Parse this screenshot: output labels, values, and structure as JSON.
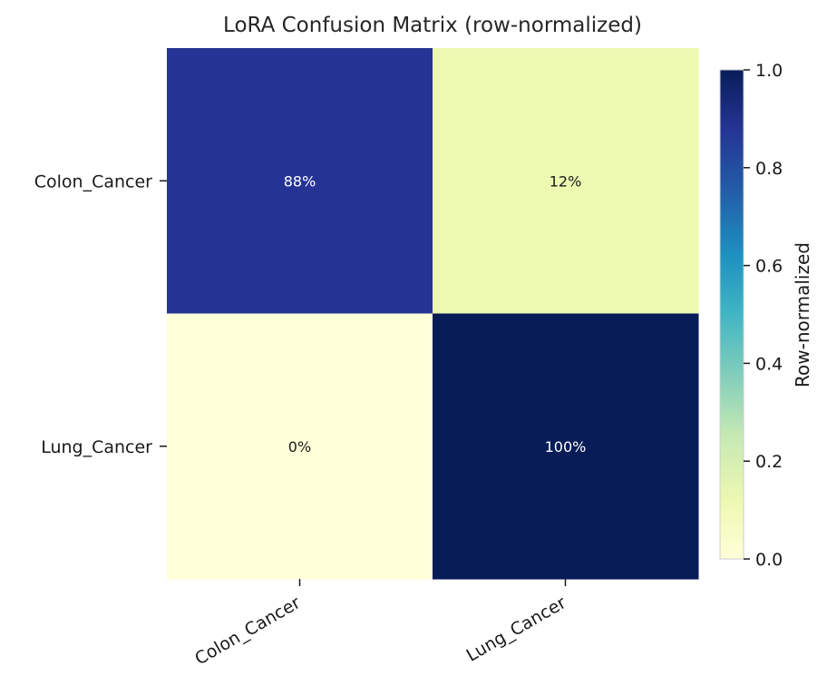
{
  "chart_data": {
    "type": "heatmap",
    "title": "LoRA Confusion Matrix (row-normalized)",
    "row_labels": [
      "Colon_Cancer",
      "Lung_Cancer"
    ],
    "col_labels": [
      "Colon_Cancer",
      "Lung_Cancer"
    ],
    "values": [
      [
        0.88,
        0.12
      ],
      [
        0.0,
        1.0
      ]
    ],
    "cell_labels": [
      [
        "88%",
        "12%"
      ],
      [
        "0%",
        "100%"
      ]
    ],
    "colormap": "YlGnBu",
    "colorbar": {
      "label": "Row-normalized",
      "range": [
        0.0,
        1.0
      ],
      "ticks": [
        0.0,
        0.2,
        0.4,
        0.6,
        0.8,
        1.0
      ],
      "tick_labels": [
        "0.0",
        "0.2",
        "0.4",
        "0.6",
        "0.8",
        "1.0"
      ]
    },
    "colors": {
      "c0.00": "#ffffd9",
      "c0.12": "#edf8b1",
      "c0.25": "#c7e9b4",
      "c0.38": "#7fcdbb",
      "c0.50": "#41b6c4",
      "c0.62": "#1d91c0",
      "c0.75": "#225ea8",
      "c0.88": "#253494",
      "c1.00": "#081d58"
    }
  }
}
